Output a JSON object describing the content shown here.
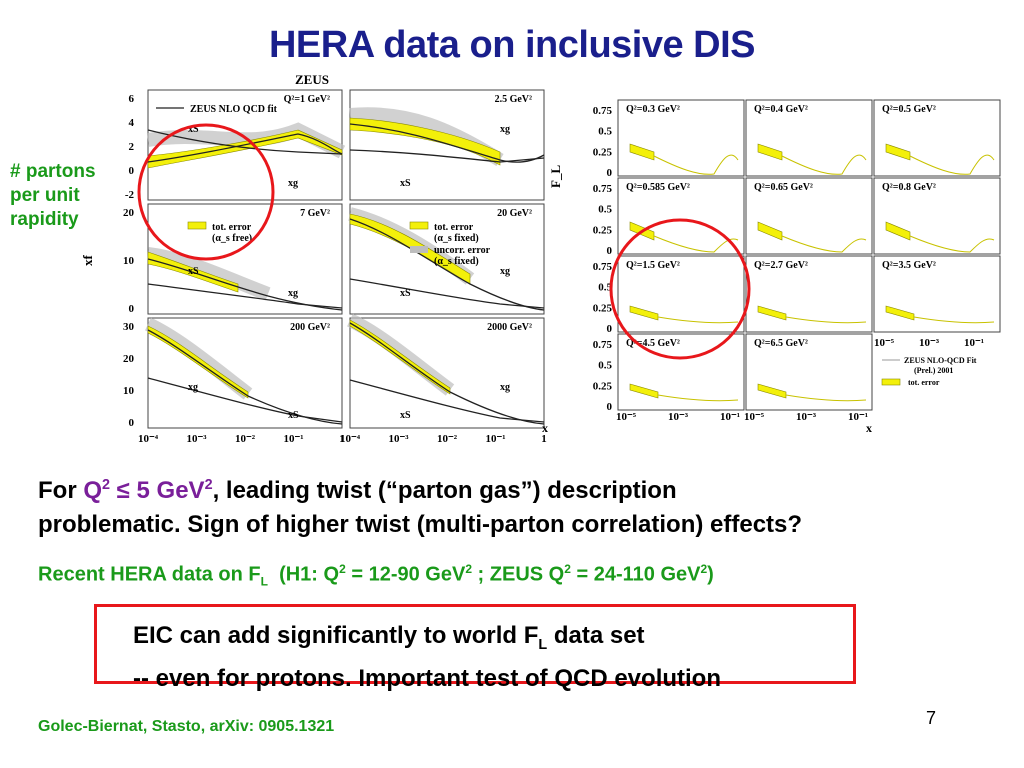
{
  "slide": {
    "title": "HERA data on inclusive DIS",
    "side_note_lines": [
      "# partons",
      "per unit",
      "rapidity"
    ],
    "para1": {
      "prefix": "For ",
      "q_highlight": "Q",
      "q_sup": "2",
      "le_text": " ≤ 5 GeV",
      "le_sup": "2",
      "rest_line1": ", leading twist (“parton gas”) description",
      "line2": "problematic. Sign of higher twist (multi-parton correlation) effects?"
    },
    "para2": {
      "text_a": "Recent HERA data on F",
      "sub_L": "L",
      "text_b": "  (H1: Q",
      "sup1": "2",
      "text_c": " = 12-90 GeV",
      "sup2": "2",
      "text_d": " ; ZEUS Q",
      "sup3": "2",
      "text_e": " = 24-110 GeV",
      "sup4": "2",
      "text_f": ")"
    },
    "boxed": {
      "line1_a": "EIC can add significantly to world F",
      "line1_sub": "L",
      "line1_b": " data set",
      "line2": "-- even for protons. Important test of QCD evolution"
    },
    "footer": "Golec-Biernat, Stasto, arXiv: 0905.1321",
    "page_number": "7",
    "highlight_color": "#e8171b",
    "title_color": "#1a1f8c",
    "green": "#1a9a1a"
  },
  "zeus_figure": {
    "header": "ZEUS",
    "ylabel": "xf",
    "xlabel": "x",
    "legend_line": "ZEUS NLO QCD fit",
    "legend_tot": "tot. error",
    "legend_tot_note": "(α_s free)",
    "legend_tot_fixed": "tot. error",
    "legend_fixed_note": "(α_s fixed)",
    "legend_uncorr": "uncorr. error",
    "legend_uncorr_note": "(α_s fixed)",
    "panels": [
      {
        "q2": "Q²=1 GeV²",
        "yticks": [
          "6",
          "4",
          "2",
          "0",
          "-2"
        ],
        "labels": [
          "xS",
          "xg"
        ]
      },
      {
        "q2": "2.5 GeV²",
        "yticks": [],
        "labels": [
          "xg",
          "xS"
        ]
      },
      {
        "q2": "7 GeV²",
        "yticks": [
          "20",
          "10",
          "0"
        ],
        "labels": [
          "xS",
          "xg"
        ]
      },
      {
        "q2": "20 GeV²",
        "yticks": [],
        "labels": [
          "xg",
          "xS"
        ]
      },
      {
        "q2": "200 GeV²",
        "yticks": [
          "30",
          "20",
          "10",
          "0"
        ],
        "labels": [
          "xg",
          "xS"
        ]
      },
      {
        "q2": "2000 GeV²",
        "yticks": [],
        "labels": [
          "xg",
          "xS"
        ]
      }
    ],
    "xticks": [
      "10⁻⁴",
      "10⁻³",
      "10⁻²",
      "10⁻¹",
      "1"
    ]
  },
  "fl_figure": {
    "ylabel": "F_L",
    "xlabel": "x",
    "yticks": [
      "0.75",
      "0.5",
      "0.25",
      "0"
    ],
    "xticks": [
      "10⁻⁵",
      "10⁻³",
      "10⁻¹"
    ],
    "panels": [
      "Q²=0.3 GeV²",
      "Q²=0.4 GeV²",
      "Q²=0.5 GeV²",
      "Q²=0.585 GeV²",
      "Q²=0.65 GeV²",
      "Q²=0.8 GeV²",
      "Q²=1.5 GeV²",
      "Q²=2.7 GeV²",
      "Q²=3.5 GeV²",
      "Q²=4.5 GeV²",
      "Q²=6.5 GeV²"
    ],
    "legend_fit": "ZEUS NLO-QCD Fit",
    "legend_prel": "(Prel.) 2001",
    "legend_err": "tot. error"
  }
}
